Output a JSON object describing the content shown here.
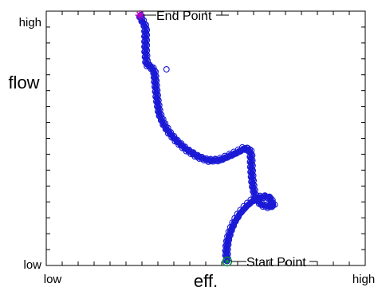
{
  "chart_data": {
    "type": "line",
    "xlabel": "eff.",
    "ylabel": "flow",
    "x_tick_labels": [
      "low",
      "high"
    ],
    "y_tick_labels": [
      "low",
      "high"
    ],
    "xlim": [
      0,
      1
    ],
    "ylim": [
      0,
      1
    ],
    "grid": false,
    "colors": {
      "trajectory": "#1a1ad6",
      "end_marker": "#c000c0",
      "start_marker": "#0a8a3a",
      "axis": "#000000"
    },
    "series": [
      {
        "x": [
          0.576,
          0.574,
          0.574,
          0.578,
          0.586,
          0.6,
          0.618,
          0.64,
          0.662,
          0.684,
          0.704,
          0.72,
          0.732,
          0.714,
          0.692,
          0.67,
          0.662,
          0.658,
          0.656,
          0.65,
          0.634,
          0.612,
          0.585,
          0.55,
          0.515,
          0.478,
          0.438,
          0.405,
          0.38,
          0.362,
          0.348,
          0.34,
          0.335,
          0.333,
          0.332,
          0.33,
          0.32,
          0.305,
          0.302,
          0.302,
          0.302,
          0.29,
          0.283,
          0.283
        ],
        "y": [
          0.0,
          0.02,
          0.05,
          0.085,
          0.12,
          0.16,
          0.195,
          0.225,
          0.248,
          0.26,
          0.264,
          0.258,
          0.228,
          0.222,
          0.23,
          0.26,
          0.31,
          0.37,
          0.44,
          0.455,
          0.46,
          0.445,
          0.43,
          0.412,
          0.41,
          0.425,
          0.455,
          0.49,
          0.525,
          0.56,
          0.6,
          0.66,
          0.72,
          0.75,
          0.76,
          0.775,
          0.79,
          0.8,
          0.85,
          0.9,
          0.95,
          0.98,
          0.997,
          1.0
        ]
      }
    ],
    "annotations": {
      "start": {
        "label": "Start Point",
        "x": 0.576,
        "y": 0.0
      },
      "end": {
        "label": "End Point",
        "x": 0.283,
        "y": 1.0
      }
    }
  }
}
